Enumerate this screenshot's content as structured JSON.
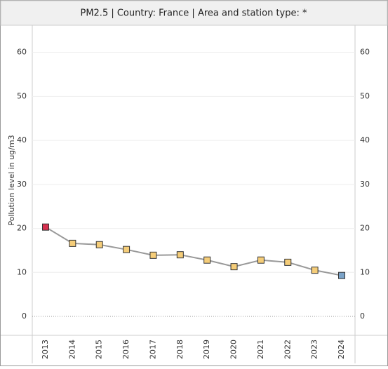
{
  "chart_data": {
    "type": "line",
    "title": "PM2.5 | Country: France | Area and station type: *",
    "y_label": "Pollution level in ug/m3",
    "categories": [
      "2013",
      "2014",
      "2015",
      "2016",
      "2017",
      "2018",
      "2019",
      "2020",
      "2021",
      "2022",
      "2023",
      "2024"
    ],
    "series": [
      {
        "name": "PM2.5",
        "color": "#999999",
        "values": [
          20.3,
          16.6,
          16.3,
          15.2,
          13.9,
          14.0,
          12.8,
          11.3,
          12.8,
          12.3,
          10.5,
          9.3
        ],
        "marker_colors": [
          "#d6304f",
          "#f5cd79",
          "#f5cd79",
          "#f5cd79",
          "#f5cd79",
          "#f5cd79",
          "#f5cd79",
          "#f5cd79",
          "#f5cd79",
          "#f5cd79",
          "#f5cd79",
          "#7ba3c8"
        ]
      }
    ],
    "ylim": [
      -4.3,
      66
    ],
    "yticks": [
      0,
      10,
      20,
      30,
      40,
      50,
      60
    ],
    "grid": true
  }
}
